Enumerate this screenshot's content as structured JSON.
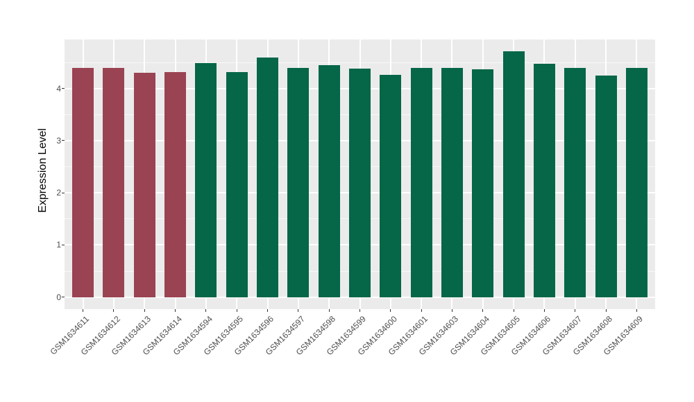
{
  "figure": {
    "panel_bg": "#EBEBEB",
    "grid_color": "#FFFFFF",
    "tick_label_color": "#4D4D4D",
    "axis_title_color": "#000000",
    "tick_mark_color": "#333333"
  },
  "chart_data": {
    "type": "bar",
    "title": "",
    "xlabel": "",
    "ylabel": "Expression Level",
    "ylim": [
      -0.23,
      4.94
    ],
    "yticks": [
      0,
      1,
      2,
      3,
      4
    ],
    "grid": true,
    "legend": false,
    "categories": [
      "GSM1634611",
      "GSM1634612",
      "GSM1634613",
      "GSM1634614",
      "GSM1634594",
      "GSM1634595",
      "GSM1634596",
      "GSM1634597",
      "GSM1634598",
      "GSM1634599",
      "GSM1634600",
      "GSM1634601",
      "GSM1634603",
      "GSM1634604",
      "GSM1634605",
      "GSM1634606",
      "GSM1634607",
      "GSM1634608",
      "GSM1634609"
    ],
    "values": [
      4.39,
      4.39,
      4.3,
      4.32,
      4.49,
      4.31,
      4.59,
      4.39,
      4.45,
      4.38,
      4.26,
      4.39,
      4.39,
      4.37,
      4.71,
      4.48,
      4.39,
      4.25,
      4.39
    ],
    "groups": [
      "group1",
      "group1",
      "group1",
      "group1",
      "group2",
      "group2",
      "group2",
      "group2",
      "group2",
      "group2",
      "group2",
      "group2",
      "group2",
      "group2",
      "group2",
      "group2",
      "group2",
      "group2",
      "group2"
    ],
    "group_colors": {
      "group1": "#9A4352",
      "group2": "#056648"
    }
  }
}
